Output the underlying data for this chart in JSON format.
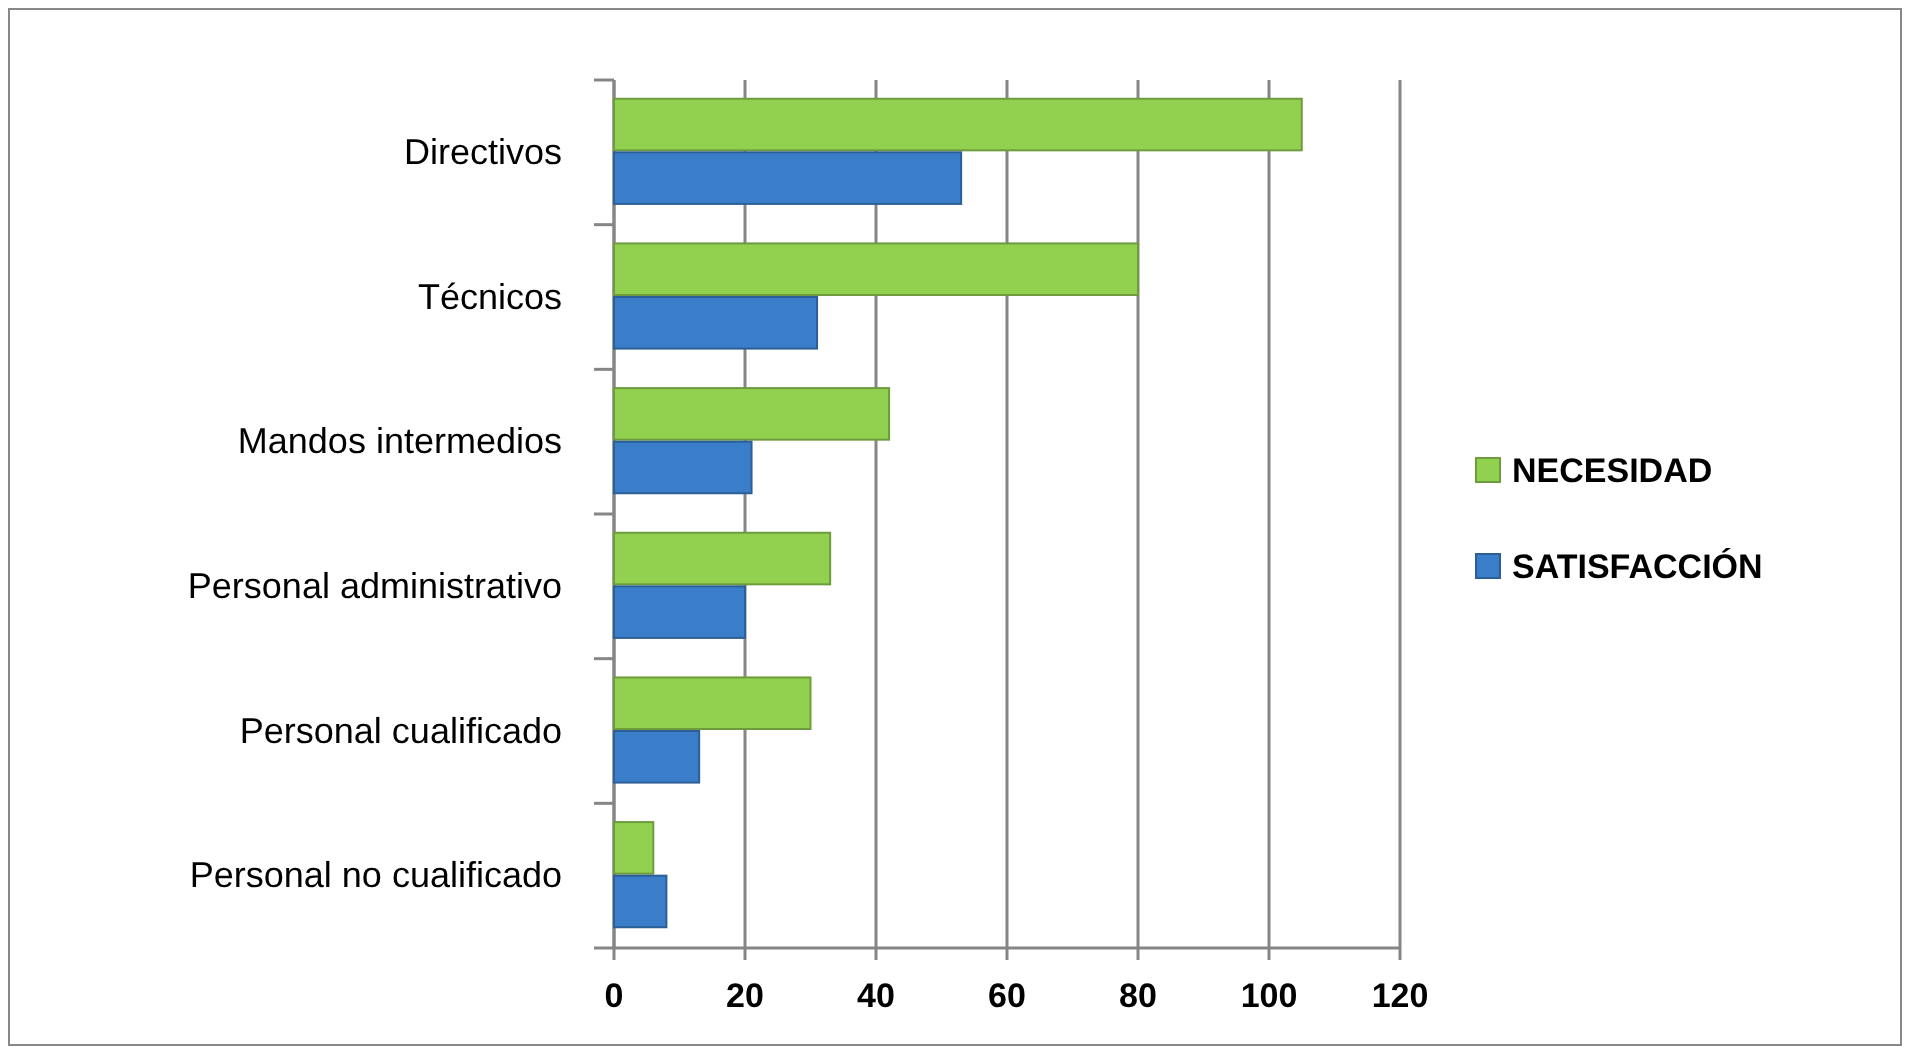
{
  "chart_data": {
    "type": "bar",
    "orientation": "horizontal",
    "categories": [
      "Directivos",
      "Técnicos",
      "Mandos intermedios",
      "Personal administrativo",
      "Personal cualificado",
      "Personal no cualificado"
    ],
    "series": [
      {
        "name": "NECESIDAD",
        "color": "#92d050",
        "values": [
          105,
          80,
          42,
          33,
          30,
          6
        ]
      },
      {
        "name": "SATISFACCIÓN",
        "color": "#3a7dc9",
        "values": [
          53,
          31,
          21,
          20,
          13,
          8
        ]
      }
    ],
    "xlim": [
      0,
      120
    ],
    "xticks": [
      0,
      20,
      40,
      60,
      80,
      100,
      120
    ],
    "grid": "x",
    "legend": "right"
  }
}
